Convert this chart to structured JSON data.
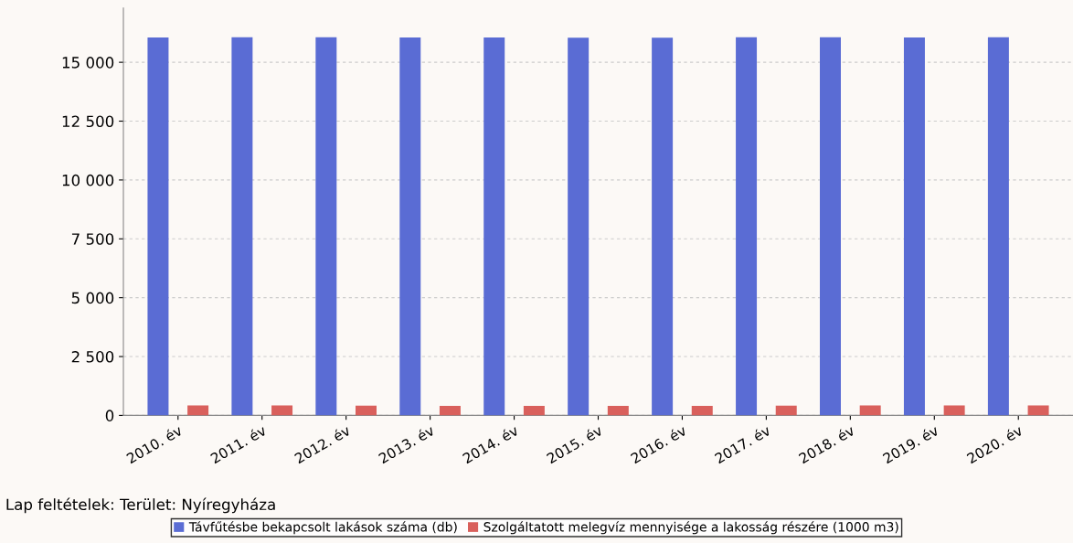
{
  "chart_data": {
    "type": "bar",
    "categories": [
      "2010. év",
      "2011. év",
      "2012. év",
      "2013. év",
      "2014. év",
      "2015. év",
      "2016. év",
      "2017. év",
      "2018. év",
      "2019. év",
      "2020. év"
    ],
    "series": [
      {
        "name": "Távfűtésbe bekapcsolt lakások száma (db)",
        "color": "#5a6cd4",
        "values": [
          16050,
          16060,
          16060,
          16050,
          16050,
          16040,
          16040,
          16060,
          16060,
          16050,
          16060
        ]
      },
      {
        "name": "Szolgáltatott melegvíz mennyisége a lakosság részére (1000 m3)",
        "color": "#d9605c",
        "values": [
          420,
          420,
          410,
          400,
          400,
          400,
          400,
          410,
          420,
          420,
          420
        ]
      }
    ],
    "ylim": [
      0,
      17300
    ],
    "yticks": [
      {
        "value": 0,
        "label": "0"
      },
      {
        "value": 2500,
        "label": "2 500"
      },
      {
        "value": 5000,
        "label": "5 000"
      },
      {
        "value": 7500,
        "label": "7 500"
      },
      {
        "value": 10000,
        "label": "10 000"
      },
      {
        "value": 12500,
        "label": "12 500"
      },
      {
        "value": 15000,
        "label": "15 000"
      }
    ],
    "grid": "y",
    "legend": "bottom",
    "annotations": [
      "Lap feltételek: Terület: Nyíregyháza"
    ]
  }
}
